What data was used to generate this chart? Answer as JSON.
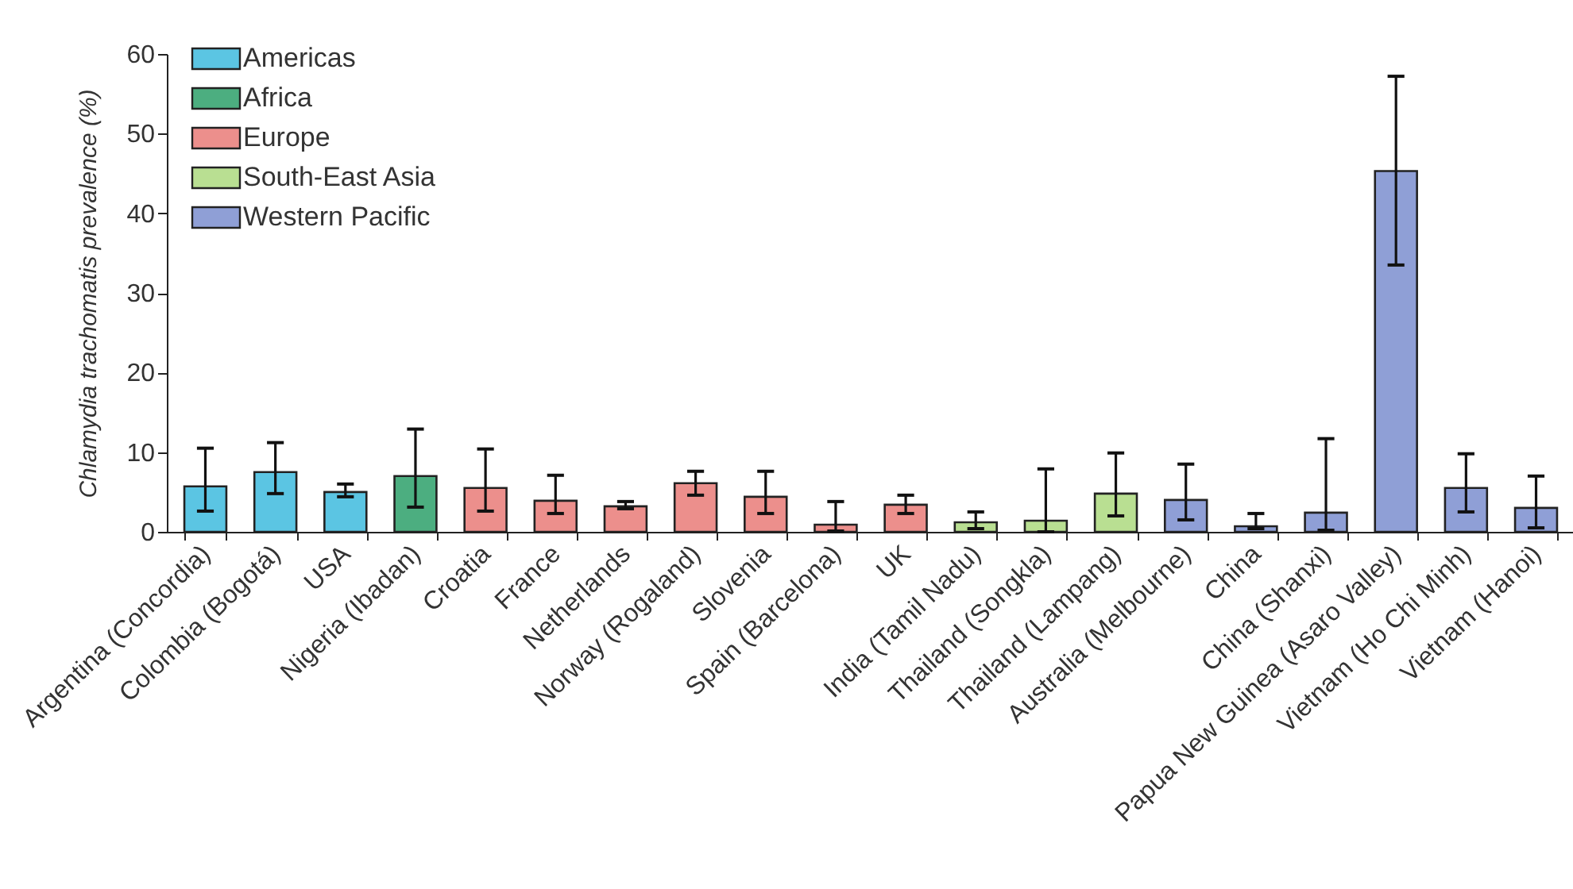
{
  "chart_data": {
    "type": "bar",
    "ylabel": "Chlamydia trachomatis prevalence (%)",
    "categories": [
      "Argentina (Concordia)",
      "Colombia (Bogotá)",
      "USA",
      "Nigeria (Ibadan)",
      "Croatia",
      "France",
      "Netherlands",
      "Norway (Rogaland)",
      "Slovenia",
      "Spain (Barcelona)",
      "UK",
      "India (Tamil Nadu)",
      "Thailand (Songkla)",
      "Thailand (Lampang)",
      "Australia (Melbourne)",
      "China",
      "China (Shanxi)",
      "Papua New Guinea (Asaro Valley)",
      "Vietnam (Ho Chi Minh)",
      "Vietnam (Hanoi)"
    ],
    "series": [
      {
        "name": "Americas",
        "color": "#5bc5e3",
        "values": [
          5.7,
          7.5,
          5.0,
          null,
          null,
          null,
          null,
          null,
          null,
          null,
          null,
          null,
          null,
          null,
          null,
          null,
          null,
          null,
          null,
          null
        ],
        "errors": [
          [
            2.6,
            10.5
          ],
          [
            4.8,
            11.2
          ],
          [
            4.4,
            6.0
          ],
          null,
          null,
          null,
          null,
          null,
          null,
          null,
          null,
          null,
          null,
          null,
          null,
          null,
          null,
          null,
          null,
          null
        ]
      },
      {
        "name": "Africa",
        "color": "#4cae80",
        "values": [
          null,
          null,
          null,
          7.0,
          null,
          null,
          null,
          null,
          null,
          null,
          null,
          null,
          null,
          null,
          null,
          null,
          null,
          null,
          null,
          null
        ],
        "errors": [
          null,
          null,
          null,
          [
            3.1,
            12.9
          ],
          null,
          null,
          null,
          null,
          null,
          null,
          null,
          null,
          null,
          null,
          null,
          null,
          null,
          null,
          null,
          null
        ]
      },
      {
        "name": "Europe",
        "color": "#ec8f8c",
        "values": [
          null,
          null,
          null,
          null,
          5.5,
          3.9,
          3.2,
          6.1,
          4.4,
          0.9,
          3.4,
          null,
          null,
          null,
          null,
          null,
          null,
          null,
          null,
          null
        ],
        "errors": [
          null,
          null,
          null,
          null,
          [
            2.6,
            10.4
          ],
          [
            2.3,
            7.1
          ],
          [
            2.9,
            3.8
          ],
          [
            4.6,
            7.6
          ],
          [
            2.3,
            7.6
          ],
          [
            0.1,
            3.8
          ],
          [
            2.3,
            4.6
          ],
          null,
          null,
          null,
          null,
          null,
          null,
          null,
          null,
          null
        ]
      },
      {
        "name": "South-East Asia",
        "color": "#b9df92",
        "values": [
          null,
          null,
          null,
          null,
          null,
          null,
          null,
          null,
          null,
          null,
          null,
          1.2,
          1.4,
          4.8,
          null,
          null,
          null,
          null,
          null,
          null
        ],
        "errors": [
          null,
          null,
          null,
          null,
          null,
          null,
          null,
          null,
          null,
          null,
          null,
          [
            0.4,
            2.5
          ],
          [
            0,
            7.9
          ],
          [
            2.0,
            9.9
          ],
          null,
          null,
          null,
          null,
          null,
          null
        ]
      },
      {
        "name": "Western Pacific",
        "color": "#8f9fd6",
        "values": [
          null,
          null,
          null,
          null,
          null,
          null,
          null,
          null,
          null,
          null,
          null,
          null,
          null,
          null,
          4.0,
          0.7,
          2.4,
          45.3,
          5.5,
          3.0
        ],
        "errors": [
          null,
          null,
          null,
          null,
          null,
          null,
          null,
          null,
          null,
          null,
          null,
          null,
          null,
          null,
          [
            1.5,
            8.5
          ],
          [
            0.4,
            2.3
          ],
          [
            0.2,
            11.7
          ],
          [
            33.5,
            57.2
          ],
          [
            2.5,
            9.8
          ],
          [
            0.5,
            7.0
          ]
        ]
      }
    ],
    "ylim": [
      0,
      60
    ],
    "yticks": [
      0,
      10,
      20,
      30,
      40,
      50,
      60
    ],
    "grid": false,
    "legend": "top left"
  }
}
